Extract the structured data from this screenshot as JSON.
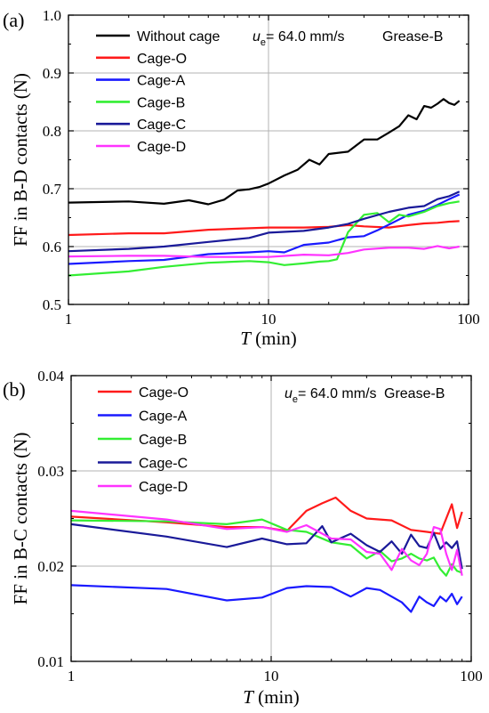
{
  "chart_data": [
    {
      "panel_label": "(a)",
      "type": "line",
      "x_scale": "log",
      "xlim": [
        1,
        100
      ],
      "ylim": [
        0.5,
        1.0
      ],
      "x_ticks": [
        "1",
        "10",
        "100"
      ],
      "y_ticks": [
        "0.5",
        "0.6",
        "0.7",
        "0.8",
        "0.9",
        "1.0"
      ],
      "xlabel_italic": "T",
      "xlabel_rest": " (min)",
      "ylabel": "FF in B-D contacts (N)",
      "annotation_u": "u",
      "annotation_sub": "e",
      "annotation_rest": "= 64.0 mm/s",
      "annotation_grease": "Grease-B",
      "grid": true,
      "series": [
        {
          "name": "Without cage",
          "color": "#000000",
          "x": [
            1,
            2,
            3,
            4,
            5,
            6,
            7,
            8,
            9,
            10,
            12,
            14,
            16,
            18,
            20,
            25,
            30,
            35,
            40,
            45,
            50,
            55,
            60,
            65,
            70,
            75,
            80,
            85,
            90
          ],
          "y": [
            0.676,
            0.678,
            0.674,
            0.68,
            0.673,
            0.681,
            0.697,
            0.699,
            0.703,
            0.709,
            0.723,
            0.733,
            0.75,
            0.742,
            0.76,
            0.764,
            0.785,
            0.785,
            0.797,
            0.808,
            0.827,
            0.82,
            0.843,
            0.84,
            0.847,
            0.855,
            0.848,
            0.845,
            0.852
          ]
        },
        {
          "name": "Cage-O",
          "color": "#ff1a1a",
          "x": [
            1,
            2,
            3,
            5,
            7,
            10,
            15,
            20,
            25,
            30,
            40,
            50,
            60,
            70,
            80,
            90
          ],
          "y": [
            0.62,
            0.623,
            0.623,
            0.629,
            0.631,
            0.633,
            0.633,
            0.634,
            0.637,
            0.635,
            0.633,
            0.637,
            0.64,
            0.641,
            0.643,
            0.644
          ]
        },
        {
          "name": "Cage-A",
          "color": "#1a1aff",
          "x": [
            1,
            2,
            3,
            5,
            8,
            10,
            12,
            15,
            20,
            25,
            30,
            35,
            40,
            50,
            60,
            70,
            80,
            90
          ],
          "y": [
            0.57,
            0.575,
            0.577,
            0.587,
            0.59,
            0.592,
            0.59,
            0.603,
            0.607,
            0.616,
            0.618,
            0.628,
            0.638,
            0.655,
            0.662,
            0.672,
            0.682,
            0.69
          ]
        },
        {
          "name": "Cage-B",
          "color": "#33ee33",
          "x": [
            1,
            2,
            3,
            5,
            8,
            10,
            12,
            15,
            18,
            20,
            22,
            25,
            30,
            35,
            40,
            45,
            50,
            60,
            70,
            80,
            90
          ],
          "y": [
            0.55,
            0.557,
            0.565,
            0.572,
            0.575,
            0.573,
            0.568,
            0.571,
            0.574,
            0.575,
            0.578,
            0.625,
            0.655,
            0.658,
            0.642,
            0.655,
            0.652,
            0.66,
            0.67,
            0.675,
            0.678
          ]
        },
        {
          "name": "Cage-C",
          "color": "#1a1a99",
          "x": [
            1,
            2,
            3,
            5,
            8,
            10,
            15,
            20,
            25,
            30,
            40,
            50,
            60,
            70,
            80,
            90
          ],
          "y": [
            0.592,
            0.596,
            0.6,
            0.608,
            0.615,
            0.624,
            0.627,
            0.633,
            0.639,
            0.648,
            0.66,
            0.667,
            0.67,
            0.682,
            0.687,
            0.695
          ]
        },
        {
          "name": "Cage-D",
          "color": "#ff33ff",
          "x": [
            1,
            2,
            3,
            5,
            8,
            10,
            15,
            20,
            25,
            30,
            40,
            50,
            60,
            70,
            80,
            90
          ],
          "y": [
            0.583,
            0.584,
            0.584,
            0.582,
            0.582,
            0.582,
            0.586,
            0.585,
            0.589,
            0.595,
            0.598,
            0.598,
            0.596,
            0.601,
            0.597,
            0.6
          ]
        }
      ]
    },
    {
      "panel_label": "(b)",
      "type": "line",
      "x_scale": "log",
      "xlim": [
        1,
        100
      ],
      "ylim": [
        0.01,
        0.04
      ],
      "x_ticks": [
        "1",
        "10",
        "100"
      ],
      "y_ticks": [
        "0.01",
        "0.02",
        "0.03",
        "0.04"
      ],
      "xlabel_italic": "T",
      "xlabel_rest": " (min)",
      "ylabel": "FF in B-C contacts (N)",
      "annotation_u": "u",
      "annotation_sub": "e",
      "annotation_rest": "= 64.0 mm/s",
      "annotation_grease": "Grease-B",
      "grid": true,
      "series": [
        {
          "name": "Cage-O",
          "color": "#ff1a1a",
          "x": [
            1,
            3,
            6,
            9,
            12,
            15,
            18,
            21,
            25,
            30,
            40,
            50,
            60,
            70,
            80,
            85,
            90
          ],
          "y": [
            0.0252,
            0.0246,
            0.0241,
            0.0241,
            0.0237,
            0.0258,
            0.0266,
            0.0272,
            0.0258,
            0.025,
            0.0248,
            0.0238,
            0.0236,
            0.0234,
            0.0265,
            0.024,
            0.0257
          ]
        },
        {
          "name": "Cage-A",
          "color": "#1a1aff",
          "x": [
            1,
            3,
            6,
            9,
            12,
            15,
            20,
            25,
            30,
            35,
            40,
            45,
            50,
            55,
            60,
            65,
            70,
            75,
            80,
            85,
            90
          ],
          "y": [
            0.018,
            0.0176,
            0.0164,
            0.0167,
            0.0177,
            0.0179,
            0.0178,
            0.0168,
            0.0177,
            0.0175,
            0.0168,
            0.0162,
            0.0152,
            0.0168,
            0.0162,
            0.0158,
            0.0168,
            0.0163,
            0.0171,
            0.016,
            0.0168
          ]
        },
        {
          "name": "Cage-B",
          "color": "#33ee33",
          "x": [
            1,
            3,
            6,
            9,
            12,
            15,
            20,
            25,
            30,
            35,
            40,
            45,
            50,
            55,
            60,
            65,
            70,
            75,
            80,
            85,
            90
          ],
          "y": [
            0.0248,
            0.0247,
            0.0244,
            0.0249,
            0.0238,
            0.0236,
            0.0225,
            0.0222,
            0.0208,
            0.0216,
            0.0205,
            0.0208,
            0.0213,
            0.0208,
            0.0206,
            0.0209,
            0.0197,
            0.019,
            0.0202,
            0.0195,
            0.0193
          ]
        },
        {
          "name": "Cage-C",
          "color": "#1a1a99",
          "x": [
            1,
            3,
            6,
            9,
            12,
            15,
            18,
            20,
            25,
            30,
            35,
            40,
            45,
            50,
            55,
            60,
            65,
            70,
            75,
            80,
            85,
            90
          ],
          "y": [
            0.0244,
            0.0231,
            0.022,
            0.0229,
            0.0223,
            0.0224,
            0.0242,
            0.0225,
            0.0234,
            0.0222,
            0.0215,
            0.0226,
            0.0213,
            0.0233,
            0.0221,
            0.0219,
            0.0235,
            0.0218,
            0.0225,
            0.0219,
            0.0226,
            0.0197
          ]
        },
        {
          "name": "Cage-D",
          "color": "#ff33ff",
          "x": [
            1,
            3,
            6,
            9,
            12,
            15,
            20,
            25,
            30,
            35,
            40,
            45,
            50,
            55,
            60,
            65,
            70,
            75,
            80,
            85,
            90
          ],
          "y": [
            0.0258,
            0.0249,
            0.0239,
            0.0241,
            0.0236,
            0.0243,
            0.0229,
            0.0228,
            0.0215,
            0.0213,
            0.0196,
            0.0218,
            0.0206,
            0.0201,
            0.0213,
            0.0241,
            0.0239,
            0.0213,
            0.0196,
            0.0217,
            0.019
          ]
        }
      ]
    }
  ]
}
